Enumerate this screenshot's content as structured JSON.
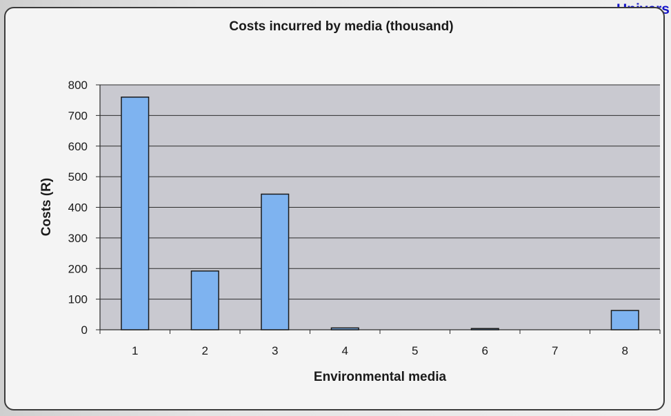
{
  "watermark_text": "Univers",
  "chart_data": {
    "type": "bar",
    "title": "Costs incurred by media (thousand)",
    "xlabel": "Environmental media",
    "ylabel": "Costs (R)",
    "categories": [
      "1",
      "2",
      "3",
      "4",
      "5",
      "6",
      "7",
      "8"
    ],
    "values": [
      760,
      192,
      443,
      6,
      0,
      4,
      0,
      63
    ],
    "ylim": [
      0,
      800
    ],
    "yticks": [
      0,
      100,
      200,
      300,
      400,
      500,
      600,
      700,
      800
    ],
    "grid": true,
    "legend": "none",
    "colors": {
      "bar_fill": "#7eb3f0",
      "bar_stroke": "#1a1a1a",
      "plot_background": "#c9c9d0",
      "gridline": "#2b2b2b"
    }
  }
}
